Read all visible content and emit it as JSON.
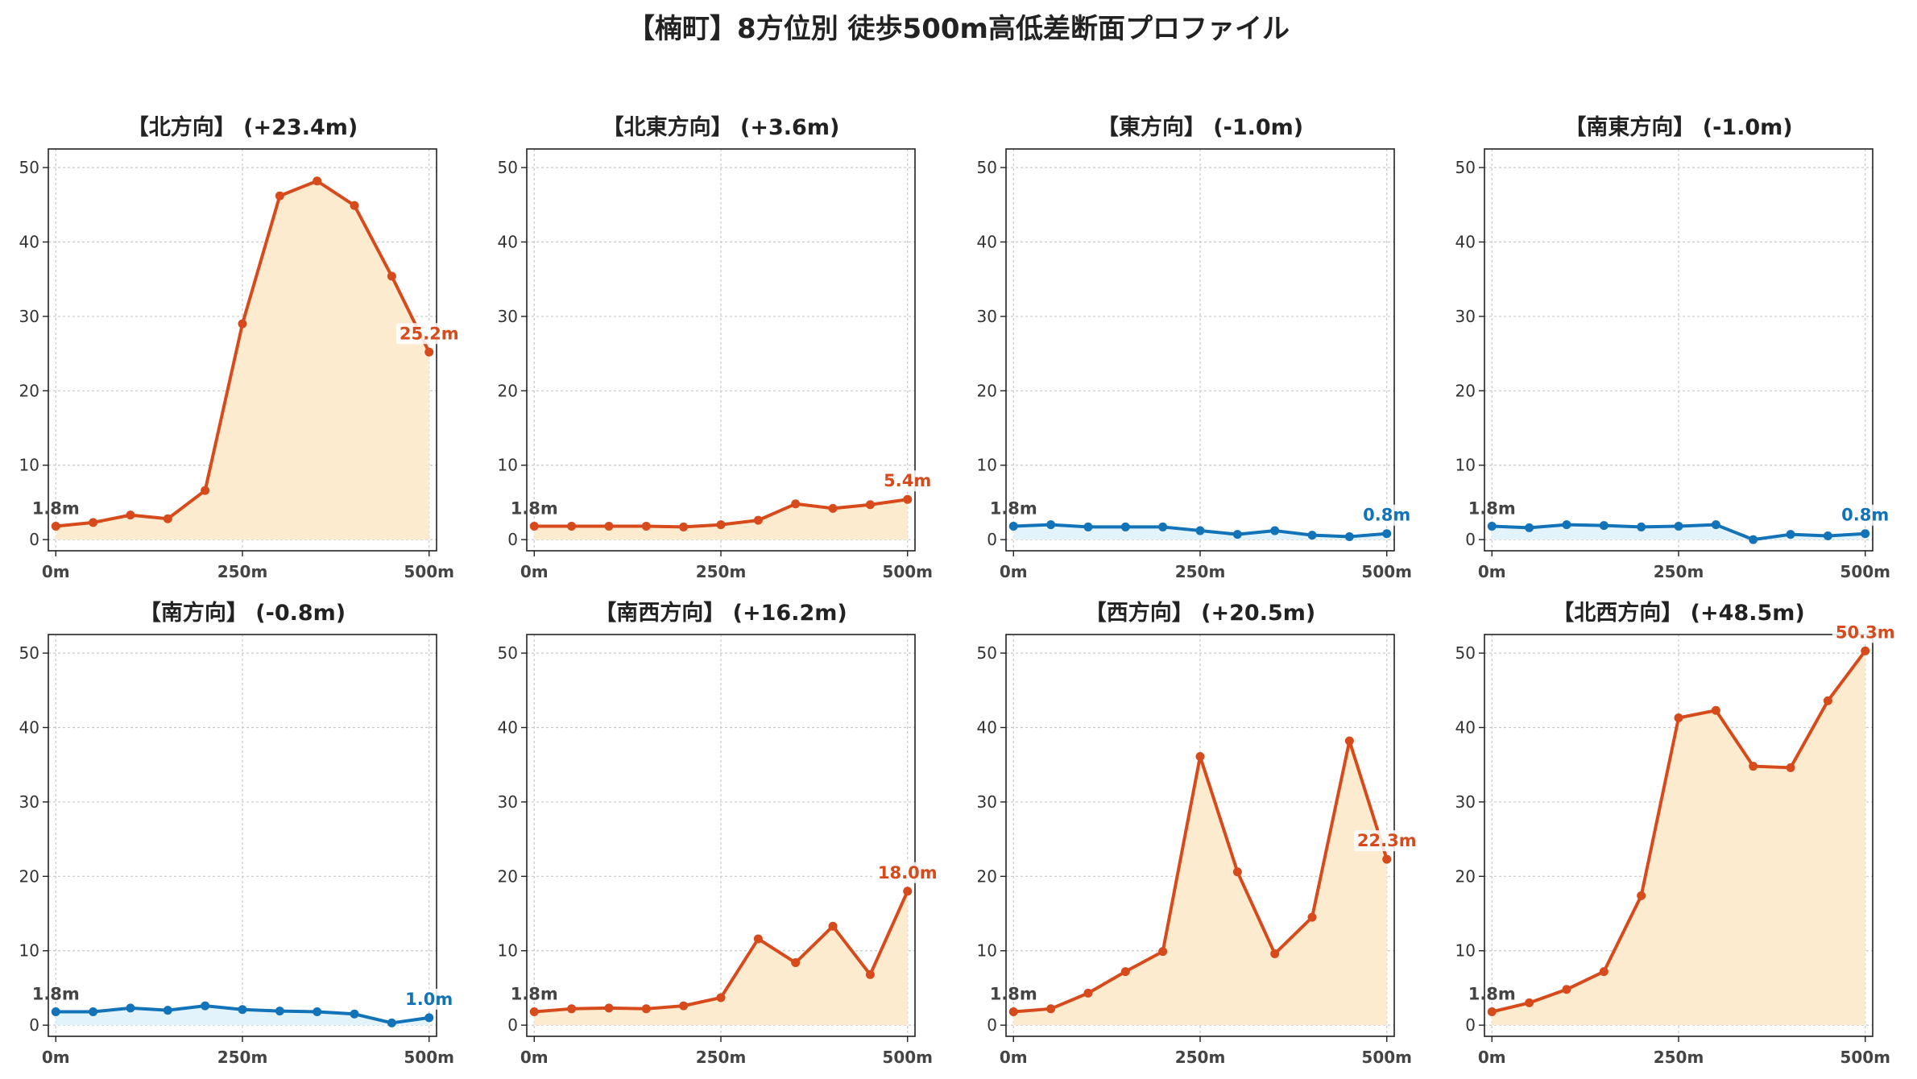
{
  "title": "【楠町】8方位別 徒歩500m高低差断面プロファイル",
  "colors": {
    "up_line": "#d64a1c",
    "up_fill": "#fdebd0",
    "down_line": "#1273b8",
    "down_fill": "#e3f3fb",
    "grid": "#c8c8c8",
    "start_label": "#444444"
  },
  "chart_data": [
    {
      "type": "area",
      "title": "【北方向】 (+23.4m)",
      "trend": "up",
      "x": [
        0,
        50,
        100,
        150,
        200,
        250,
        300,
        350,
        400,
        450,
        500
      ],
      "y": [
        1.8,
        2.3,
        3.3,
        2.8,
        6.6,
        29.0,
        46.2,
        48.2,
        44.9,
        35.4,
        25.2
      ],
      "start_label": "1.8m",
      "end_label": "25.2m",
      "x_ticks": [
        0,
        250,
        500
      ],
      "x_tick_labels": [
        "0m",
        "250m",
        "500m"
      ],
      "y_ticks": [
        0,
        10,
        20,
        30,
        40,
        50
      ],
      "y_tick_labels": [
        "0",
        "10",
        "20",
        "30",
        "40",
        "50"
      ],
      "xlim": [
        -10,
        510
      ],
      "ylim": [
        -1.5,
        52.5
      ],
      "grid": true
    },
    {
      "type": "area",
      "title": "【北東方向】 (+3.6m)",
      "trend": "up",
      "x": [
        0,
        50,
        100,
        150,
        200,
        250,
        300,
        350,
        400,
        450,
        500
      ],
      "y": [
        1.8,
        1.8,
        1.8,
        1.8,
        1.7,
        2.0,
        2.6,
        4.8,
        4.2,
        4.7,
        5.4
      ],
      "start_label": "1.8m",
      "end_label": "5.4m",
      "x_ticks": [
        0,
        250,
        500
      ],
      "x_tick_labels": [
        "0m",
        "250m",
        "500m"
      ],
      "y_ticks": [
        0,
        10,
        20,
        30,
        40,
        50
      ],
      "y_tick_labels": [
        "0",
        "10",
        "20",
        "30",
        "40",
        "50"
      ],
      "xlim": [
        -10,
        510
      ],
      "ylim": [
        -1.5,
        52.5
      ],
      "grid": true
    },
    {
      "type": "area",
      "title": "【東方向】 (-1.0m)",
      "trend": "down",
      "x": [
        0,
        50,
        100,
        150,
        200,
        250,
        300,
        350,
        400,
        450,
        500
      ],
      "y": [
        1.8,
        2.0,
        1.7,
        1.7,
        1.7,
        1.2,
        0.7,
        1.2,
        0.6,
        0.4,
        0.8
      ],
      "start_label": "1.8m",
      "end_label": "0.8m",
      "x_ticks": [
        0,
        250,
        500
      ],
      "x_tick_labels": [
        "0m",
        "250m",
        "500m"
      ],
      "y_ticks": [
        0,
        10,
        20,
        30,
        40,
        50
      ],
      "y_tick_labels": [
        "0",
        "10",
        "20",
        "30",
        "40",
        "50"
      ],
      "xlim": [
        -10,
        510
      ],
      "ylim": [
        -1.5,
        52.5
      ],
      "grid": true
    },
    {
      "type": "area",
      "title": "【南東方向】 (-1.0m)",
      "trend": "down",
      "x": [
        0,
        50,
        100,
        150,
        200,
        250,
        300,
        350,
        400,
        450,
        500
      ],
      "y": [
        1.8,
        1.6,
        2.0,
        1.9,
        1.7,
        1.8,
        2.0,
        0.0,
        0.7,
        0.5,
        0.8
      ],
      "start_label": "1.8m",
      "end_label": "0.8m",
      "x_ticks": [
        0,
        250,
        500
      ],
      "x_tick_labels": [
        "0m",
        "250m",
        "500m"
      ],
      "y_ticks": [
        0,
        10,
        20,
        30,
        40,
        50
      ],
      "y_tick_labels": [
        "0",
        "10",
        "20",
        "30",
        "40",
        "50"
      ],
      "xlim": [
        -10,
        510
      ],
      "ylim": [
        -1.5,
        52.5
      ],
      "grid": true
    },
    {
      "type": "area",
      "title": "【南方向】 (-0.8m)",
      "trend": "down",
      "x": [
        0,
        50,
        100,
        150,
        200,
        250,
        300,
        350,
        400,
        450,
        500
      ],
      "y": [
        1.8,
        1.8,
        2.3,
        2.0,
        2.6,
        2.1,
        1.9,
        1.8,
        1.5,
        0.3,
        1.0
      ],
      "start_label": "1.8m",
      "end_label": "1.0m",
      "x_ticks": [
        0,
        250,
        500
      ],
      "x_tick_labels": [
        "0m",
        "250m",
        "500m"
      ],
      "y_ticks": [
        0,
        10,
        20,
        30,
        40,
        50
      ],
      "y_tick_labels": [
        "0",
        "10",
        "20",
        "30",
        "40",
        "50"
      ],
      "xlim": [
        -10,
        510
      ],
      "ylim": [
        -1.5,
        52.5
      ],
      "grid": true
    },
    {
      "type": "area",
      "title": "【南西方向】 (+16.2m)",
      "trend": "up",
      "x": [
        0,
        50,
        100,
        150,
        200,
        250,
        300,
        350,
        400,
        450,
        500
      ],
      "y": [
        1.8,
        2.2,
        2.3,
        2.2,
        2.6,
        3.7,
        11.6,
        8.4,
        13.3,
        6.8,
        18.0
      ],
      "start_label": "1.8m",
      "end_label": "18.0m",
      "x_ticks": [
        0,
        250,
        500
      ],
      "x_tick_labels": [
        "0m",
        "250m",
        "500m"
      ],
      "y_ticks": [
        0,
        10,
        20,
        30,
        40,
        50
      ],
      "y_tick_labels": [
        "0",
        "10",
        "20",
        "30",
        "40",
        "50"
      ],
      "xlim": [
        -10,
        510
      ],
      "ylim": [
        -1.5,
        52.5
      ],
      "grid": true
    },
    {
      "type": "area",
      "title": "【西方向】 (+20.5m)",
      "trend": "up",
      "x": [
        0,
        50,
        100,
        150,
        200,
        250,
        300,
        350,
        400,
        450,
        500
      ],
      "y": [
        1.8,
        2.2,
        4.3,
        7.2,
        9.9,
        36.1,
        20.6,
        9.6,
        14.5,
        38.2,
        22.3
      ],
      "start_label": "1.8m",
      "end_label": "22.3m",
      "x_ticks": [
        0,
        250,
        500
      ],
      "x_tick_labels": [
        "0m",
        "250m",
        "500m"
      ],
      "y_ticks": [
        0,
        10,
        20,
        30,
        40,
        50
      ],
      "y_tick_labels": [
        "0",
        "10",
        "20",
        "30",
        "40",
        "50"
      ],
      "xlim": [
        -10,
        510
      ],
      "ylim": [
        -1.5,
        52.5
      ],
      "grid": true
    },
    {
      "type": "area",
      "title": "【北西方向】 (+48.5m)",
      "trend": "up",
      "x": [
        0,
        50,
        100,
        150,
        200,
        250,
        300,
        350,
        400,
        450,
        500
      ],
      "y": [
        1.8,
        3.0,
        4.8,
        7.2,
        17.4,
        41.3,
        42.3,
        34.8,
        34.6,
        43.6,
        50.3
      ],
      "start_label": "1.8m",
      "end_label": "50.3m",
      "x_ticks": [
        0,
        250,
        500
      ],
      "x_tick_labels": [
        "0m",
        "250m",
        "500m"
      ],
      "y_ticks": [
        0,
        10,
        20,
        30,
        40,
        50
      ],
      "y_tick_labels": [
        "0",
        "10",
        "20",
        "30",
        "40",
        "50"
      ],
      "xlim": [
        -10,
        510
      ],
      "ylim": [
        -1.5,
        52.5
      ],
      "grid": true
    }
  ]
}
